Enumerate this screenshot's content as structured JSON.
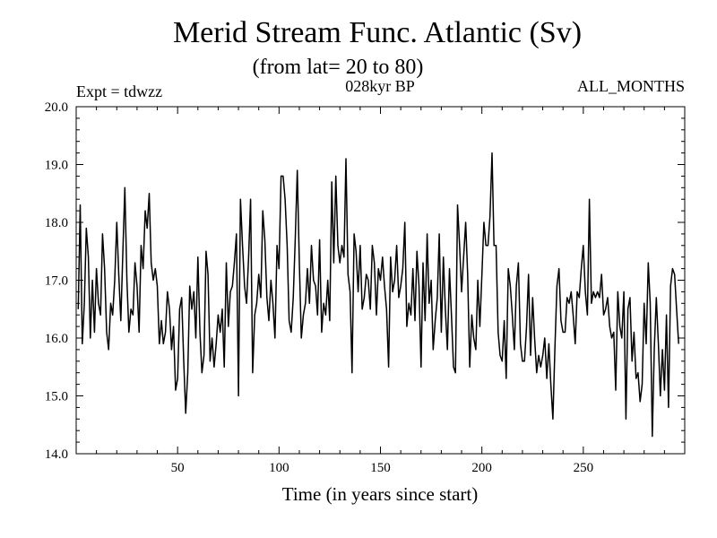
{
  "chart_data": {
    "type": "line",
    "title": "Merid Stream Func. Atlantic (Sv)",
    "subtitle": "(from lat= 20 to 80)",
    "annotations": {
      "left": "Expt = tdwzz",
      "center": "028kyr BP",
      "right": "ALL_MONTHS"
    },
    "xlabel": "Time (in years since start)",
    "ylabel": "",
    "xlim": [
      0,
      300
    ],
    "ylim": [
      14.0,
      20.0
    ],
    "x_ticks": [
      50,
      100,
      150,
      200,
      250
    ],
    "y_ticks": [
      14.0,
      15.0,
      16.0,
      17.0,
      18.0,
      19.0,
      20.0
    ],
    "y_tick_labels": [
      "14.0",
      "15.0",
      "16.0",
      "17.0",
      "18.0",
      "19.0",
      "20.0"
    ],
    "grid": false,
    "line_color": "#000000",
    "series": [
      {
        "x_start": 1,
        "x_step": 1,
        "values": [
          16.5,
          18.3,
          15.9,
          16.6,
          17.9,
          17.4,
          16.0,
          17.0,
          16.1,
          17.2,
          16.6,
          16.4,
          17.8,
          17.2,
          16.1,
          15.8,
          16.6,
          16.4,
          17.0,
          18.0,
          17.1,
          16.3,
          17.5,
          18.6,
          17.0,
          16.1,
          16.5,
          16.4,
          17.3,
          16.9,
          16.1,
          17.6,
          17.2,
          18.2,
          17.9,
          18.5,
          17.3,
          17.0,
          17.2,
          16.9,
          15.9,
          16.3,
          15.9,
          16.1,
          16.8,
          16.5,
          15.8,
          16.2,
          15.1,
          15.3,
          16.5,
          16.7,
          15.6,
          14.7,
          15.4,
          16.9,
          16.5,
          16.8,
          16.0,
          17.4,
          16.1,
          15.4,
          15.7,
          17.5,
          17.1,
          15.6,
          16.0,
          15.5,
          15.9,
          16.4,
          16.1,
          16.5,
          15.5,
          17.3,
          16.2,
          16.8,
          16.9,
          17.3,
          17.8,
          15.0,
          18.4,
          17.6,
          16.9,
          16.6,
          17.4,
          18.4,
          15.4,
          16.4,
          16.6,
          17.1,
          16.7,
          18.2,
          17.7,
          16.7,
          16.3,
          17.0,
          16.6,
          16.0,
          17.6,
          17.2,
          18.8,
          18.8,
          18.4,
          17.6,
          16.3,
          16.1,
          16.7,
          17.7,
          18.9,
          17.3,
          16.0,
          16.4,
          16.6,
          17.2,
          16.6,
          17.6,
          17.0,
          16.9,
          16.4,
          17.7,
          16.1,
          16.6,
          16.4,
          17.0,
          16.3,
          18.7,
          17.3,
          18.8,
          17.6,
          17.3,
          17.6,
          17.4,
          19.1,
          17.1,
          16.8,
          15.4,
          17.8,
          17.5,
          16.8,
          17.6,
          16.5,
          16.7,
          17.1,
          17.0,
          16.5,
          17.6,
          17.3,
          16.4,
          17.2,
          17.0,
          17.4,
          16.9,
          16.5,
          15.5,
          17.4,
          16.8,
          17.0,
          17.6,
          16.7,
          16.9,
          17.2,
          18.0,
          16.2,
          16.6,
          16.4,
          17.2,
          16.3,
          17.5,
          16.9,
          15.5,
          17.3,
          16.3,
          17.8,
          16.6,
          17.0,
          15.8,
          16.3,
          16.7,
          17.8,
          16.1,
          17.4,
          16.5,
          15.8,
          17.2,
          16.4,
          15.5,
          15.4,
          18.3,
          17.6,
          16.8,
          17.4,
          18.0,
          17.1,
          15.5,
          16.4,
          16.0,
          15.8,
          17.0,
          16.2,
          17.1,
          18.0,
          17.6,
          17.6,
          18.1,
          19.2,
          17.6,
          17.6,
          16.1,
          15.7,
          15.6,
          16.3,
          15.3,
          17.2,
          16.9,
          16.4,
          15.8,
          16.9,
          17.3,
          15.9,
          15.6,
          15.6,
          16.2,
          17.1,
          15.7,
          16.7,
          16.0,
          15.4,
          15.7,
          15.5,
          15.7,
          16.0,
          15.3,
          15.9,
          15.2,
          14.6,
          15.8,
          16.9,
          17.2,
          16.3,
          16.1,
          16.1,
          16.7,
          16.6,
          16.8,
          16.4,
          15.9,
          16.8,
          16.7,
          17.2,
          17.6,
          16.8,
          16.4,
          18.4,
          16.6,
          16.8,
          16.7,
          16.8,
          16.7,
          17.1,
          16.4,
          16.5,
          16.7,
          16.2,
          16.0,
          16.1,
          15.1,
          16.8,
          16.2,
          16.0,
          16.8,
          14.6,
          16.5,
          16.7,
          15.6,
          16.1,
          15.3,
          15.4,
          14.9,
          15.2,
          16.6,
          15.9,
          17.3,
          16.6,
          14.3,
          15.8,
          16.7,
          15.9,
          15.0,
          15.8,
          15.1,
          16.4,
          14.8,
          16.9,
          17.2,
          17.1,
          16.5,
          15.9
        ]
      }
    ]
  }
}
